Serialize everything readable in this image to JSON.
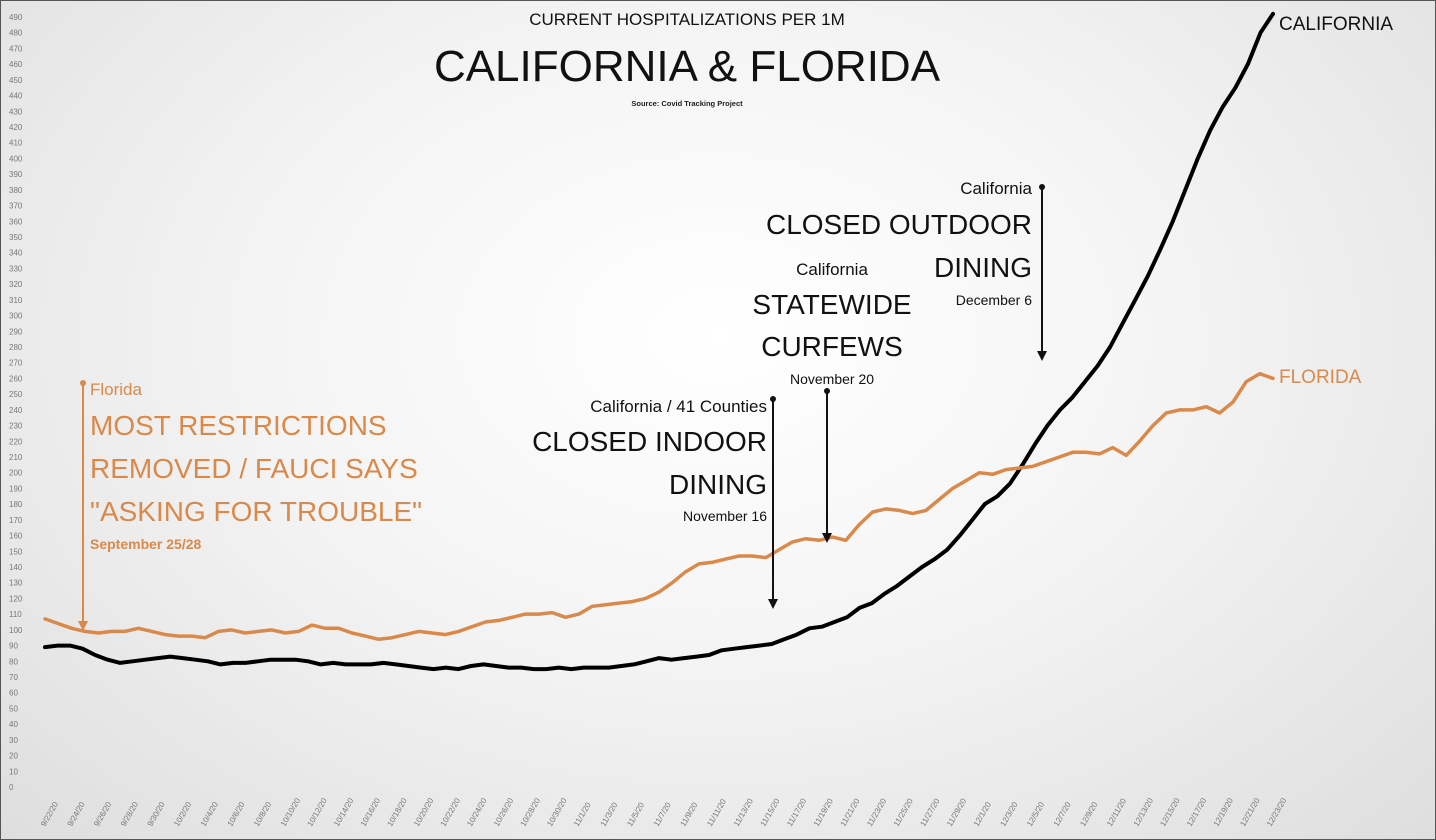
{
  "chart_data": {
    "type": "line",
    "subtitle": "CURRENT HOSPITALIZATIONS PER 1M",
    "title": "CALIFORNIA & FLORIDA",
    "source": "Source: Covid Tracking Project",
    "ylim": [
      0,
      490
    ],
    "y_ticks": [
      0,
      10,
      20,
      30,
      40,
      50,
      60,
      70,
      80,
      90,
      100,
      110,
      120,
      130,
      140,
      150,
      160,
      170,
      180,
      190,
      200,
      210,
      220,
      230,
      240,
      250,
      260,
      270,
      280,
      290,
      300,
      310,
      320,
      330,
      340,
      350,
      360,
      370,
      380,
      390,
      400,
      410,
      420,
      430,
      440,
      450,
      460,
      470,
      480,
      490
    ],
    "x_ticks": [
      "9/22/20",
      "9/24/20",
      "9/26/20",
      "9/28/20",
      "9/30/20",
      "10/2/20",
      "10/4/20",
      "10/6/20",
      "10/8/20",
      "10/10/20",
      "10/12/20",
      "10/14/20",
      "10/16/20",
      "10/18/20",
      "10/20/20",
      "10/22/20",
      "10/24/20",
      "10/26/20",
      "10/28/20",
      "10/30/20",
      "11/1/20",
      "11/3/20",
      "11/5/20",
      "11/7/20",
      "11/9/20",
      "11/11/20",
      "11/13/20",
      "11/15/20",
      "11/17/20",
      "11/19/20",
      "11/21/20",
      "11/23/20",
      "11/25/20",
      "11/27/20",
      "11/29/20",
      "12/1/20",
      "12/3/20",
      "12/5/20",
      "12/7/20",
      "12/9/20",
      "12/11/20",
      "12/13/20",
      "12/15/20",
      "12/17/20",
      "12/19/20",
      "12/21/20",
      "12/23/20"
    ],
    "grid": false,
    "series": [
      {
        "name": "CALIFORNIA",
        "color": "#000000",
        "values": [
          89,
          90,
          90,
          88,
          84,
          81,
          79,
          80,
          81,
          82,
          83,
          82,
          81,
          80,
          78,
          79,
          79,
          80,
          81,
          81,
          81,
          80,
          78,
          79,
          78,
          78,
          78,
          79,
          78,
          77,
          76,
          75,
          76,
          75,
          77,
          78,
          77,
          76,
          76,
          75,
          75,
          76,
          75,
          76,
          76,
          76,
          77,
          78,
          80,
          82,
          81,
          82,
          83,
          84,
          87,
          88,
          89,
          90,
          91,
          94,
          97,
          101,
          102,
          105,
          108,
          114,
          117,
          123,
          128,
          134,
          140,
          145,
          151,
          160,
          170,
          180,
          185,
          193,
          205,
          218,
          230,
          240,
          248,
          258,
          268,
          280,
          295,
          310,
          325,
          342,
          360,
          380,
          400,
          418,
          433,
          445,
          460,
          480,
          492
        ]
      },
      {
        "name": "FLORIDA",
        "color": "#d9894a",
        "values": [
          107,
          104,
          101,
          99,
          98,
          99,
          99,
          101,
          99,
          97,
          96,
          96,
          95,
          99,
          100,
          98,
          99,
          100,
          98,
          99,
          103,
          101,
          101,
          98,
          96,
          94,
          95,
          97,
          99,
          98,
          97,
          99,
          102,
          105,
          106,
          108,
          110,
          110,
          111,
          108,
          110,
          115,
          116,
          117,
          118,
          120,
          124,
          130,
          137,
          142,
          143,
          145,
          147,
          147,
          146,
          151,
          156,
          158,
          157,
          159,
          157,
          167,
          175,
          177,
          176,
          174,
          176,
          183,
          190,
          195,
          200,
          199,
          202,
          203,
          204,
          207,
          210,
          213,
          213,
          212,
          216,
          211,
          220,
          230,
          238,
          240,
          240,
          242,
          238,
          245,
          258,
          263,
          260
        ]
      }
    ],
    "annotations": [
      {
        "state": "Florida",
        "text": "MOST RESTRICTIONS REMOVED / FAUCI SAYS \"ASKING FOR TROUBLE\"",
        "lines": [
          "MOST RESTRICTIONS",
          "REMOVED / FAUCI SAYS",
          "\"ASKING FOR TROUBLE\""
        ],
        "date": "September 25/28"
      },
      {
        "state": "California / 41 Counties",
        "text": "CLOSED INDOOR DINING",
        "lines": [
          "CLOSED INDOOR",
          "DINING"
        ],
        "date": "November 16"
      },
      {
        "state": "California",
        "text": "STATEWIDE CURFEWS",
        "lines": [
          "STATEWIDE",
          "CURFEWS"
        ],
        "date": "November 20"
      },
      {
        "state": "California",
        "text": "CLOSED OUTDOOR DINING",
        "lines": [
          "CLOSED OUTDOOR",
          "DINING"
        ],
        "date": "December 6"
      }
    ]
  }
}
